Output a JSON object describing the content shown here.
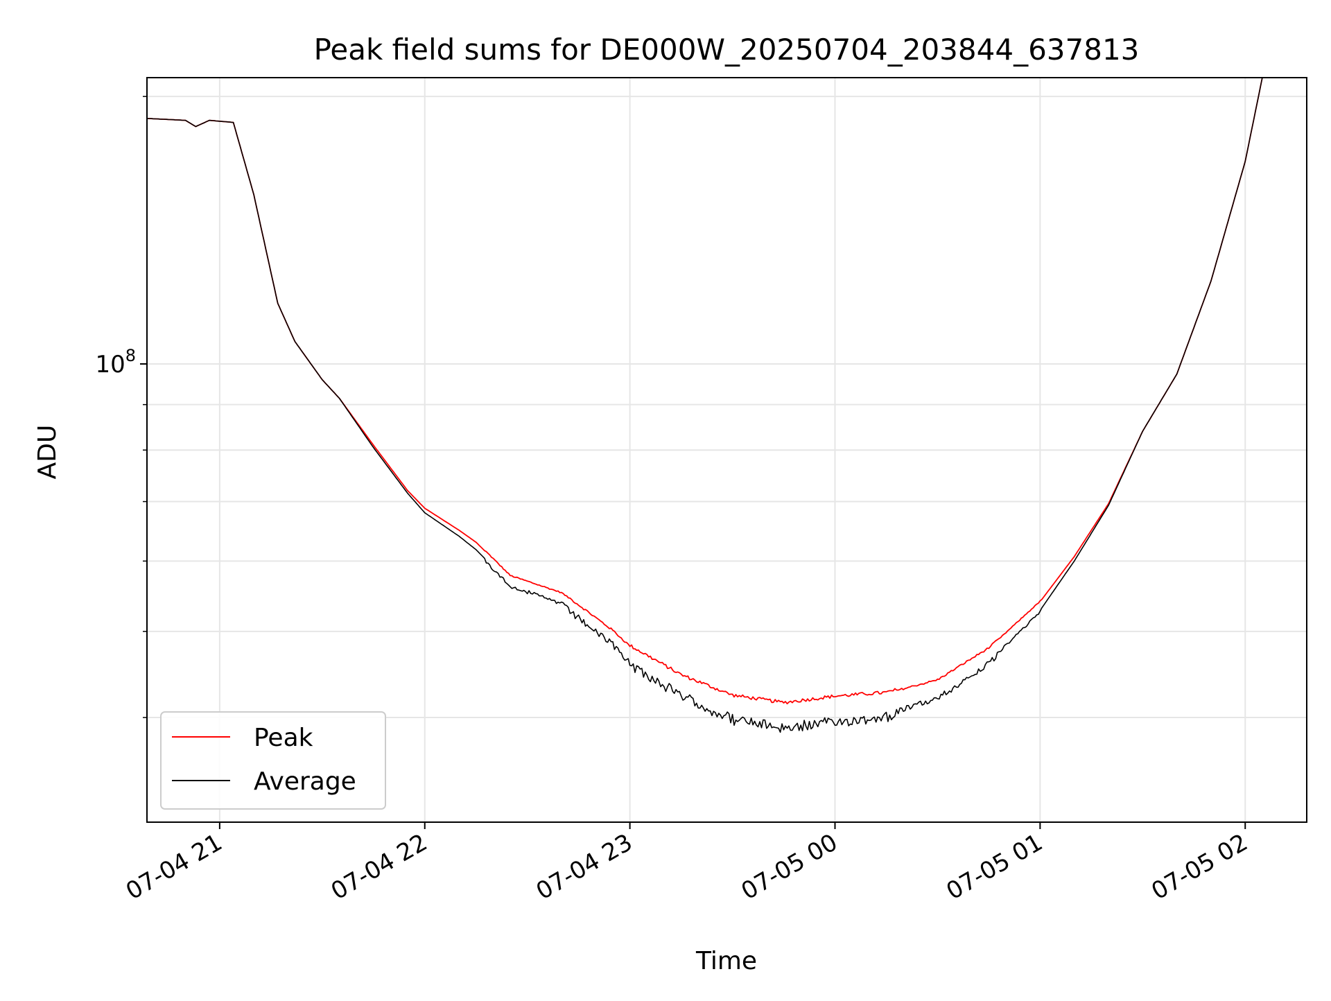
{
  "chart_data": {
    "type": "line",
    "title": "Peak field sums for DE000W_20250704_203844_637813",
    "xlabel": "Time",
    "ylabel": "ADU",
    "y_scale": "log",
    "grid": true,
    "legend_position": "lower-left",
    "x_range": [
      "2025-07-04 20:38:44",
      "2025-07-05 02:18:00"
    ],
    "y_range": [
      30500000,
      210000000
    ],
    "x_ticks": [
      {
        "value": "2025-07-04 21:00",
        "label": "07-04 21"
      },
      {
        "value": "2025-07-04 22:00",
        "label": "07-04 22"
      },
      {
        "value": "2025-07-04 23:00",
        "label": "07-04 23"
      },
      {
        "value": "2025-07-05 00:00",
        "label": "07-05 00"
      },
      {
        "value": "2025-07-05 01:00",
        "label": "07-05 01"
      },
      {
        "value": "2025-07-05 02:00",
        "label": "07-05 02"
      }
    ],
    "y_major_ticks": [
      {
        "value": 100000000,
        "base": "10",
        "exponent": "8"
      }
    ],
    "y_minor_ticks": [
      40000000,
      50000000,
      60000000,
      70000000,
      80000000,
      90000000,
      200000000
    ],
    "series": [
      {
        "name": "Peak",
        "color": "#ff0000",
        "points": [
          [
            "2025-07-04 20:38",
            189000000
          ],
          [
            "2025-07-04 20:50",
            188000000
          ],
          [
            "2025-07-04 20:53",
            185000000
          ],
          [
            "2025-07-04 20:57",
            188000000
          ],
          [
            "2025-07-04 21:04",
            187000000
          ],
          [
            "2025-07-04 21:10",
            155000000
          ],
          [
            "2025-07-04 21:17",
            117000000
          ],
          [
            "2025-07-04 21:22",
            106000000
          ],
          [
            "2025-07-04 21:30",
            96000000
          ],
          [
            "2025-07-04 21:35",
            91500000
          ],
          [
            "2025-07-04 21:45",
            81000000
          ],
          [
            "2025-07-04 21:55",
            72000000
          ],
          [
            "2025-07-04 22:00",
            68800000
          ],
          [
            "2025-07-04 22:10",
            65000000
          ],
          [
            "2025-07-04 22:15",
            63000000
          ],
          [
            "2025-07-04 22:25",
            57700000
          ],
          [
            "2025-07-04 22:40",
            55200000
          ],
          [
            "2025-07-04 22:55",
            50000000
          ],
          [
            "2025-07-04 23:00",
            48000000
          ],
          [
            "2025-07-04 23:15",
            44500000
          ],
          [
            "2025-07-04 23:30",
            42200000
          ],
          [
            "2025-07-04 23:45",
            41400000
          ],
          [
            "2025-07-05 00:00",
            42100000
          ],
          [
            "2025-07-05 00:15",
            42500000
          ],
          [
            "2025-07-05 00:30",
            44000000
          ],
          [
            "2025-07-05 00:45",
            47800000
          ],
          [
            "2025-07-05 01:00",
            54000000
          ],
          [
            "2025-07-05 01:10",
            60700000
          ],
          [
            "2025-07-05 01:20",
            69600000
          ],
          [
            "2025-07-05 01:30",
            84000000
          ],
          [
            "2025-07-05 01:40",
            97400000
          ],
          [
            "2025-07-05 01:50",
            124000000
          ],
          [
            "2025-07-05 02:00",
            169000000
          ],
          [
            "2025-07-05 02:05",
            210000000
          ],
          [
            "2025-07-05 02:18",
            210000000
          ]
        ]
      },
      {
        "name": "Average",
        "color": "#000000",
        "points": [
          [
            "2025-07-04 20:38",
            189000000
          ],
          [
            "2025-07-04 20:50",
            188000000
          ],
          [
            "2025-07-04 20:53",
            185000000
          ],
          [
            "2025-07-04 20:57",
            188000000
          ],
          [
            "2025-07-04 21:04",
            187000000
          ],
          [
            "2025-07-04 21:10",
            155000000
          ],
          [
            "2025-07-04 21:17",
            117000000
          ],
          [
            "2025-07-04 21:22",
            106000000
          ],
          [
            "2025-07-04 21:30",
            96000000
          ],
          [
            "2025-07-04 21:35",
            91500000
          ],
          [
            "2025-07-04 21:45",
            80500000
          ],
          [
            "2025-07-04 21:55",
            71500000
          ],
          [
            "2025-07-04 22:00",
            68000000
          ],
          [
            "2025-07-04 22:10",
            64000000
          ],
          [
            "2025-07-04 22:15",
            61800000
          ],
          [
            "2025-07-04 22:25",
            56500000
          ],
          [
            "2025-07-04 22:40",
            54000000
          ],
          [
            "2025-07-04 22:55",
            48700000
          ],
          [
            "2025-07-04 23:00",
            46500000
          ],
          [
            "2025-07-04 23:15",
            42800000
          ],
          [
            "2025-07-04 23:30",
            40300000
          ],
          [
            "2025-07-04 23:45",
            39400000
          ],
          [
            "2025-07-05 00:00",
            40000000
          ],
          [
            "2025-07-05 00:15",
            40600000
          ],
          [
            "2025-07-05 00:30",
            42300000
          ],
          [
            "2025-07-05 00:45",
            46300000
          ],
          [
            "2025-07-05 01:00",
            52800000
          ],
          [
            "2025-07-05 01:10",
            60000000
          ],
          [
            "2025-07-05 01:20",
            69300000
          ],
          [
            "2025-07-05 01:30",
            84000000
          ],
          [
            "2025-07-05 01:40",
            97400000
          ],
          [
            "2025-07-05 01:50",
            124000000
          ],
          [
            "2025-07-05 02:00",
            169000000
          ],
          [
            "2025-07-05 02:05",
            210000000
          ],
          [
            "2025-07-05 02:18",
            210000000
          ]
        ]
      }
    ]
  }
}
